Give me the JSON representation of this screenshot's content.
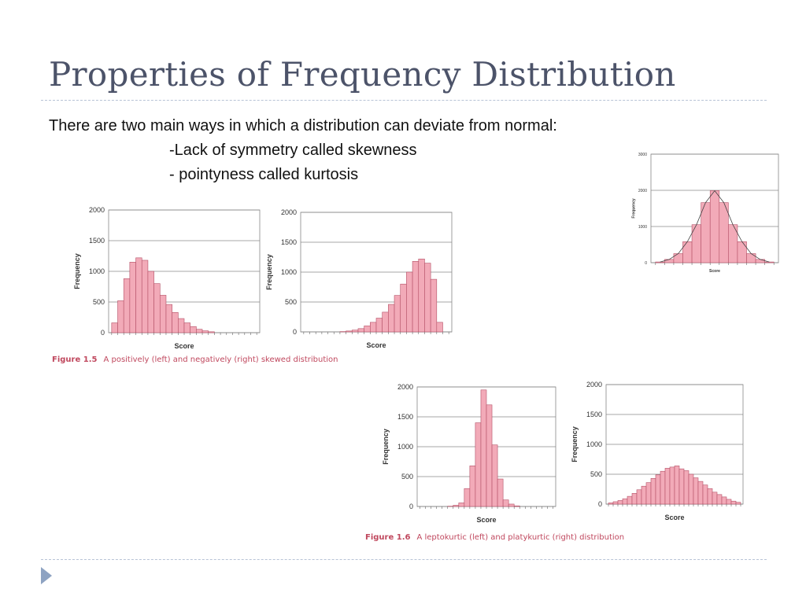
{
  "slide": {
    "title": "Properties of Frequency Distribution",
    "intro": "There are two main ways in which a distribution can deviate from normal:",
    "bullet1": "-Lack of symmetry called skewness",
    "bullet2": "- pointyness called kurtosis"
  },
  "figure_1_5": {
    "label": "Figure 1.5",
    "text": "A positively (left) and negatively (right) skewed distribution"
  },
  "figure_1_6": {
    "label": "Figure 1.6",
    "text": "A leptokurtic (left) and platykurtic (right) distribution"
  },
  "colors": {
    "bar_fill": "#f2aab8",
    "bar_stroke": "#b45066",
    "grid": "#8a8a8a",
    "caption": "#c0485e"
  },
  "chart_data": [
    {
      "id": "positive-skew",
      "type": "bar",
      "xlabel": "Score",
      "ylabel": "Frequency",
      "yticks": [
        0,
        500,
        1000,
        1500,
        2000
      ],
      "ylim": [
        0,
        2000
      ],
      "values": [
        160,
        520,
        880,
        1150,
        1220,
        1180,
        1000,
        800,
        610,
        460,
        330,
        230,
        160,
        100,
        55,
        30,
        15
      ],
      "total_bins": 24,
      "grid": true
    },
    {
      "id": "negative-skew",
      "type": "bar",
      "xlabel": "Score",
      "ylabel": "Frequency",
      "yticks": [
        0,
        500,
        1000,
        1500,
        2000
      ],
      "ylim": [
        0,
        2000
      ],
      "values": [
        5,
        15,
        30,
        55,
        100,
        160,
        230,
        330,
        460,
        610,
        800,
        1000,
        1180,
        1220,
        1150,
        880,
        160
      ],
      "total_bins": 24,
      "offset_bins": 6,
      "grid": true
    },
    {
      "id": "normal",
      "type": "bar",
      "xlabel": "Score",
      "ylabel": "Frequency",
      "yticks": [
        0,
        1000,
        2000,
        3000
      ],
      "ylim": [
        0,
        3000
      ],
      "values": [
        20,
        90,
        250,
        580,
        1050,
        1660,
        1990,
        1660,
        1050,
        580,
        250,
        90,
        20
      ],
      "curve": true,
      "grid": true
    },
    {
      "id": "leptokurtic",
      "type": "bar",
      "xlabel": "Score",
      "ylabel": "Frequency",
      "yticks": [
        0,
        500,
        1000,
        1500,
        2000
      ],
      "ylim": [
        0,
        2000
      ],
      "values": [
        5,
        20,
        60,
        300,
        680,
        1400,
        1950,
        1700,
        1030,
        460,
        110,
        40,
        10
      ],
      "offset_bins": 5,
      "total_bins": 24,
      "grid": true
    },
    {
      "id": "platykurtic",
      "type": "bar",
      "xlabel": "Score",
      "ylabel": "Frequency",
      "yticks": [
        0,
        500,
        1000,
        1500,
        2000
      ],
      "ylim": [
        0,
        2000
      ],
      "values": [
        20,
        40,
        60,
        90,
        130,
        180,
        240,
        300,
        360,
        430,
        490,
        550,
        600,
        620,
        640,
        590,
        560,
        500,
        440,
        380,
        320,
        260,
        200,
        160,
        120,
        80,
        50,
        30
      ],
      "total_bins": 28,
      "grid": true
    }
  ]
}
